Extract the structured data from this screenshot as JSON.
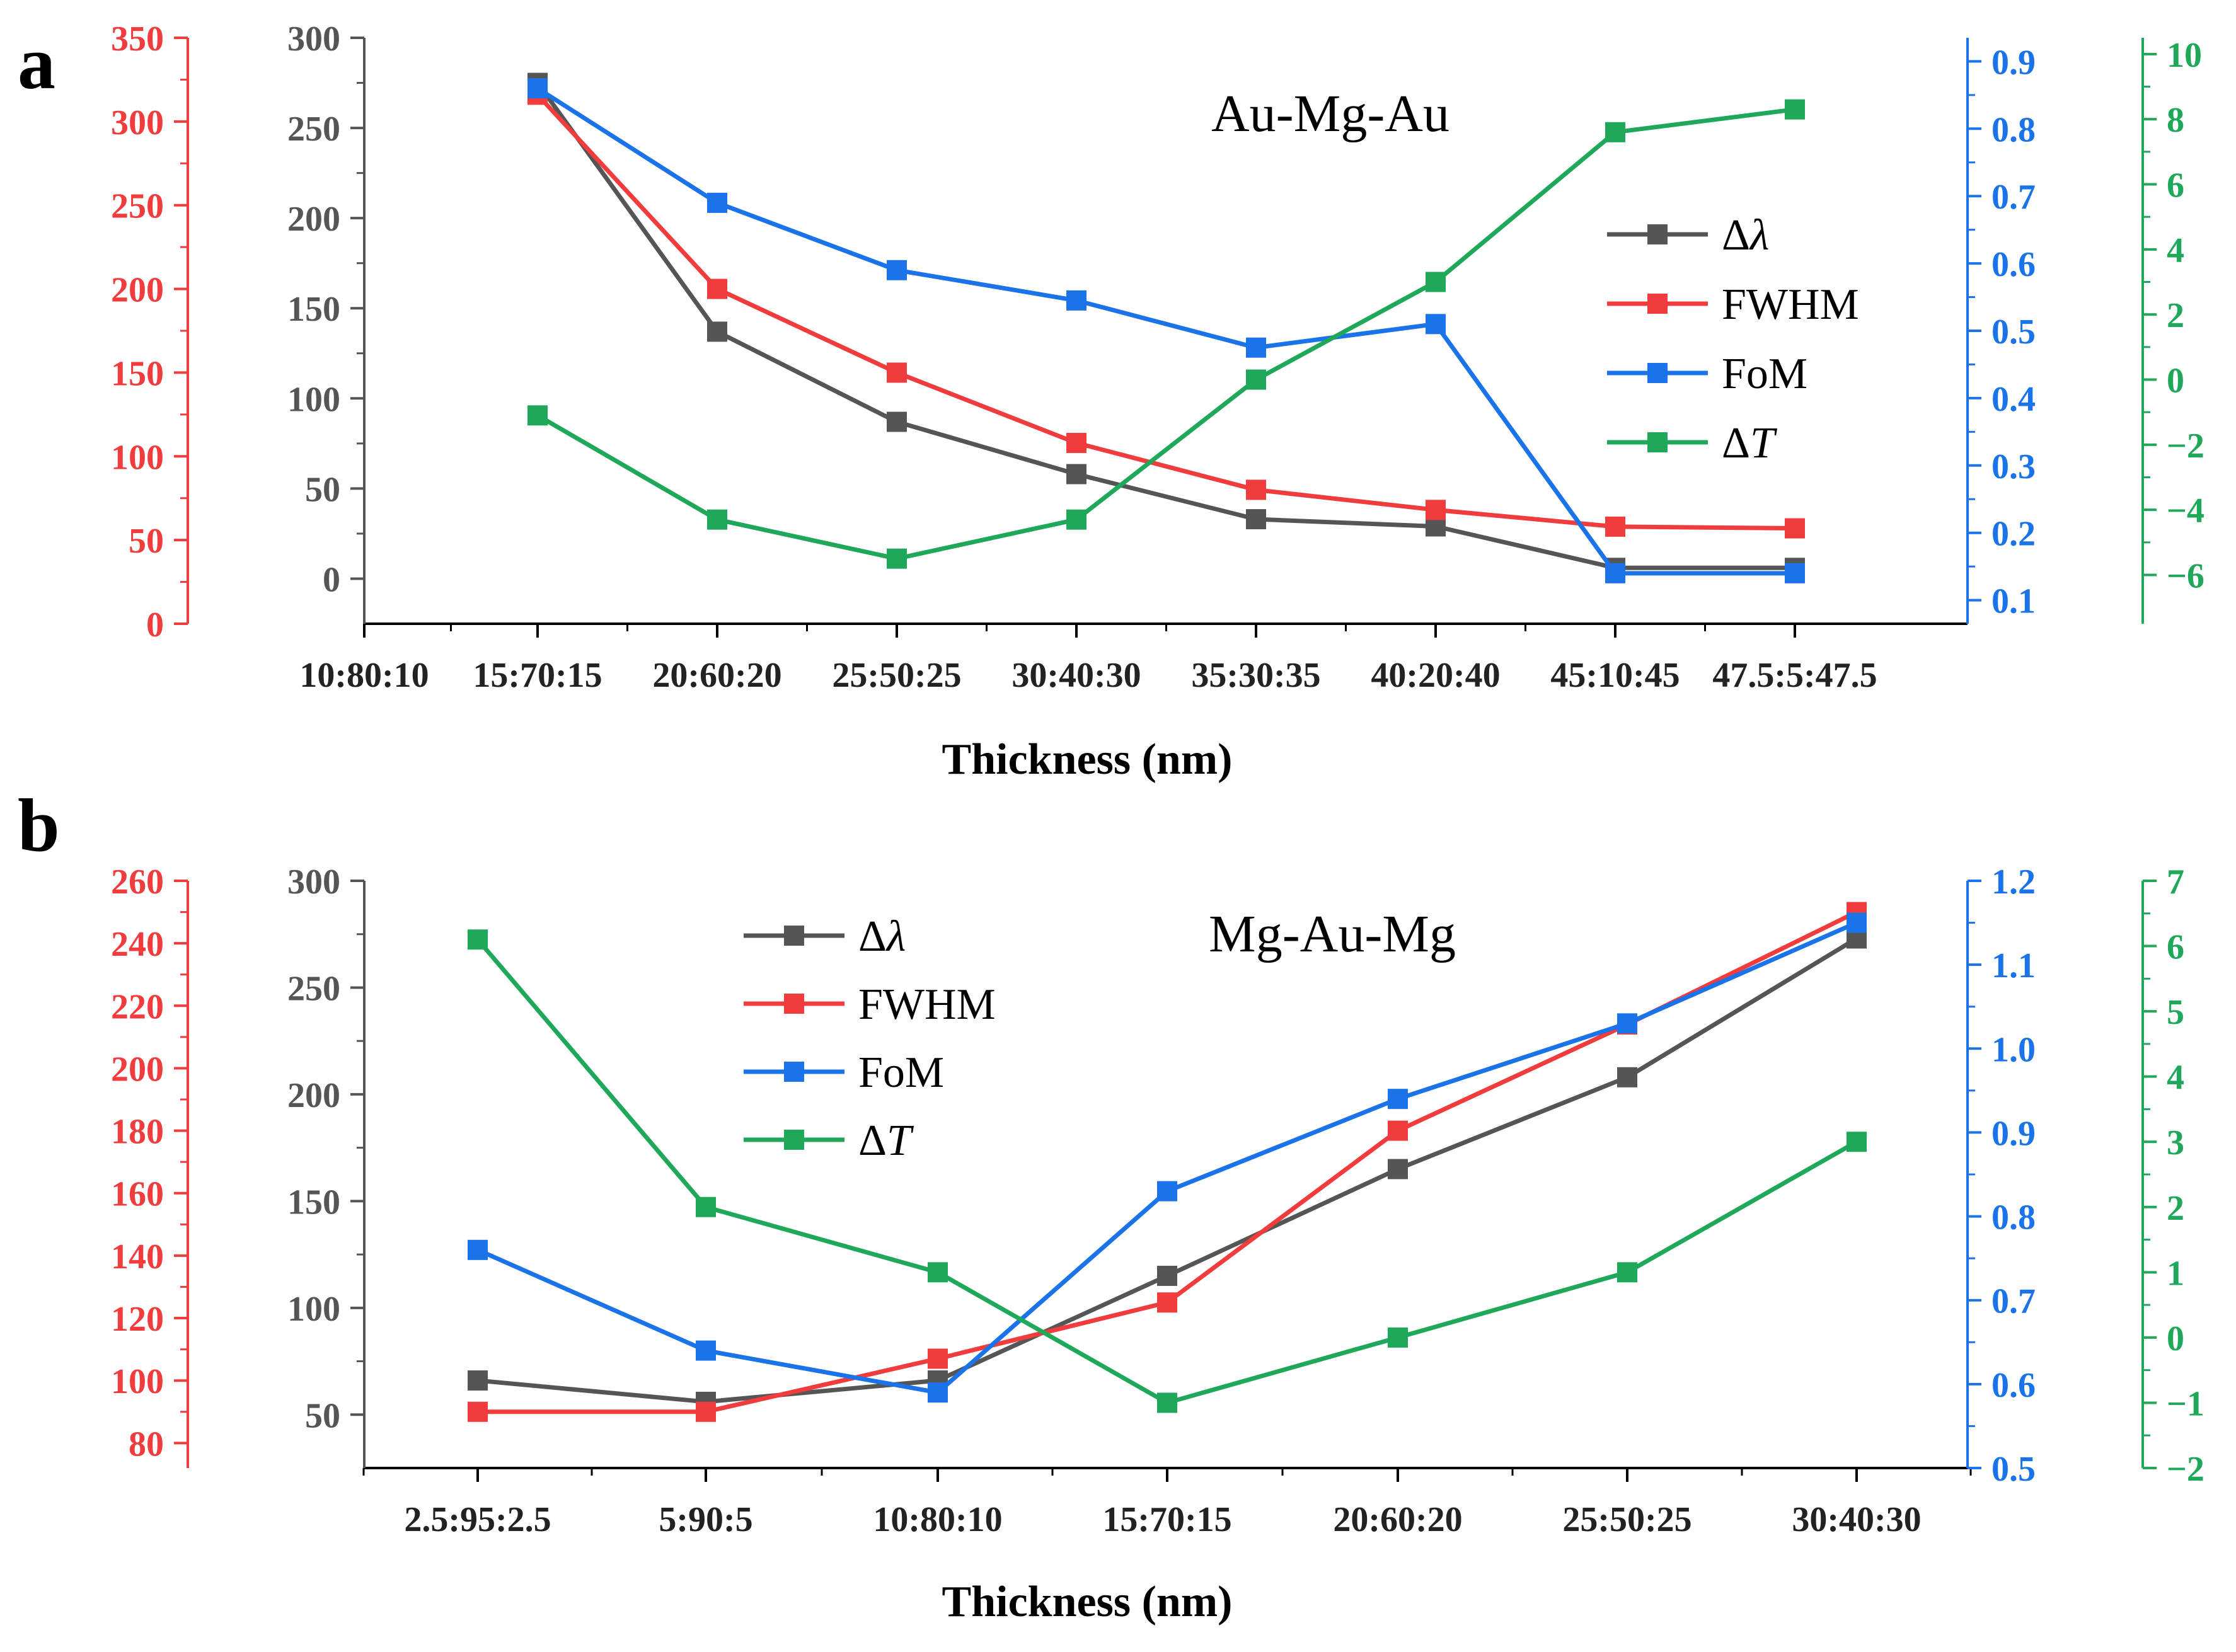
{
  "chart_data": [
    {
      "panel_label": "a",
      "type": "line",
      "annotation": "Au-Mg-Au",
      "xlabel": "Thickness (nm)",
      "x_ticks": [
        "10:80:10",
        "15:70:15",
        "20:60:20",
        "25:50:25",
        "30:40:30",
        "35:30:35",
        "40:20:40",
        "45:10:45",
        "47.5:5:47.5"
      ],
      "categories": [
        "15:70:15",
        "20:60:20",
        "25:50:25",
        "30:40:30",
        "35:30:35",
        "40:20:40",
        "45:10:45",
        "47.5:5:47.5"
      ],
      "axes": [
        {
          "id": "red",
          "color": "#f03c3c",
          "ylim": [
            0,
            350
          ],
          "ticks": [
            0,
            50,
            100,
            150,
            200,
            250,
            300,
            350
          ],
          "tick_labels": [
            "0",
            "50",
            "100",
            "150",
            "200",
            "250",
            "300",
            "350"
          ]
        },
        {
          "id": "black",
          "color": "#555555",
          "ylim": [
            -25,
            300
          ],
          "ticks": [
            0,
            50,
            100,
            150,
            200,
            250,
            300
          ],
          "tick_labels": [
            "0",
            "50",
            "100",
            "150",
            "200",
            "250",
            "300"
          ]
        },
        {
          "id": "blue",
          "color": "#1a73e8",
          "ylim": [
            0.065,
            0.935
          ],
          "ticks": [
            0.1,
            0.2,
            0.3,
            0.4,
            0.5,
            0.6,
            0.7,
            0.8,
            0.9
          ],
          "tick_labels": [
            "0.1",
            "0.2",
            "0.3",
            "0.4",
            "0.5",
            "0.6",
            "0.7",
            "0.8",
            "0.9"
          ]
        },
        {
          "id": "green",
          "color": "#1fa85a",
          "ylim": [
            -7.5,
            10.5
          ],
          "ticks": [
            -6,
            -4,
            -2,
            0,
            2,
            4,
            6,
            8,
            10
          ],
          "tick_labels": [
            "−6",
            "−4",
            "−2",
            "0",
            "2",
            "4",
            "6",
            "8",
            "10"
          ]
        }
      ],
      "series": [
        {
          "name": "Δλ",
          "axis": "black",
          "color": "#555555",
          "values": [
            275,
            137,
            87,
            58,
            33,
            29,
            6,
            6
          ]
        },
        {
          "name": "FWHM",
          "axis": "red",
          "color": "#f03c3c",
          "values": [
            316,
            200,
            150,
            108,
            80,
            68,
            58,
            57
          ]
        },
        {
          "name": "FoM",
          "axis": "blue",
          "color": "#1a73e8",
          "values": [
            0.86,
            0.69,
            0.59,
            0.545,
            0.475,
            0.51,
            0.14,
            0.14
          ]
        },
        {
          "name": "ΔT",
          "axis": "green",
          "color": "#1fa85a",
          "values": [
            -1.1,
            -4.3,
            -5.5,
            -4.3,
            0.0,
            3.0,
            7.6,
            8.3
          ]
        }
      ],
      "legend_position": "center-right"
    },
    {
      "panel_label": "b",
      "type": "line",
      "annotation": "Mg-Au-Mg",
      "xlabel": "Thickness (nm)",
      "x_ticks": [
        "2.5:95:2.5",
        "5:90:5",
        "10:80:10",
        "15:70:15",
        "20:60:20",
        "25:50:25",
        "30:40:30"
      ],
      "categories": [
        "2.5:95:2.5",
        "5:90:5",
        "10:80:10",
        "15:70:15",
        "20:60:20",
        "25:50:25",
        "30:40:30"
      ],
      "axes": [
        {
          "id": "red",
          "color": "#f03c3c",
          "ylim": [
            72,
            260
          ],
          "ticks": [
            80,
            100,
            120,
            140,
            160,
            180,
            200,
            220,
            240,
            260
          ],
          "tick_labels": [
            "80",
            "100",
            "120",
            "140",
            "160",
            "180",
            "200",
            "220",
            "240",
            "260"
          ]
        },
        {
          "id": "black",
          "color": "#555555",
          "ylim": [
            25,
            300
          ],
          "ticks": [
            50,
            100,
            150,
            200,
            250,
            300
          ],
          "tick_labels": [
            "50",
            "100",
            "150",
            "200",
            "250",
            "300"
          ]
        },
        {
          "id": "blue",
          "color": "#1a73e8",
          "ylim": [
            0.5,
            1.2
          ],
          "ticks": [
            0.5,
            0.6,
            0.7,
            0.8,
            0.9,
            1.0,
            1.1,
            1.2
          ],
          "tick_labels": [
            "0.5",
            "0.6",
            "0.7",
            "0.8",
            "0.9",
            "1.0",
            "1.1",
            "1.2"
          ]
        },
        {
          "id": "green",
          "color": "#1fa85a",
          "ylim": [
            -2,
            7
          ],
          "ticks": [
            -2,
            -1,
            0,
            1,
            2,
            3,
            4,
            5,
            6,
            7
          ],
          "tick_labels": [
            "−2",
            "−1",
            "0",
            "1",
            "2",
            "3",
            "4",
            "5",
            "6",
            "7"
          ]
        }
      ],
      "series": [
        {
          "name": "Δλ",
          "axis": "black",
          "color": "#555555",
          "values": [
            66,
            56,
            66,
            115,
            165,
            208,
            273
          ]
        },
        {
          "name": "FWHM",
          "axis": "red",
          "color": "#f03c3c",
          "values": [
            90,
            90,
            107,
            125,
            180,
            214,
            250
          ]
        },
        {
          "name": "FoM",
          "axis": "blue",
          "color": "#1a73e8",
          "values": [
            0.76,
            0.64,
            0.59,
            0.83,
            0.94,
            1.03,
            1.15
          ]
        },
        {
          "name": "ΔT",
          "axis": "green",
          "color": "#1fa85a",
          "values": [
            6.1,
            2.0,
            1.0,
            -1.0,
            0.0,
            1.0,
            3.0
          ]
        }
      ],
      "legend_position": "top-left"
    }
  ]
}
